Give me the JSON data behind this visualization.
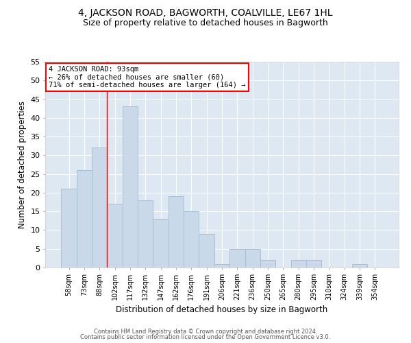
{
  "title1": "4, JACKSON ROAD, BAGWORTH, COALVILLE, LE67 1HL",
  "title2": "Size of property relative to detached houses in Bagworth",
  "xlabel": "Distribution of detached houses by size in Bagworth",
  "ylabel": "Number of detached properties",
  "categories": [
    "58sqm",
    "73sqm",
    "88sqm",
    "102sqm",
    "117sqm",
    "132sqm",
    "147sqm",
    "162sqm",
    "176sqm",
    "191sqm",
    "206sqm",
    "221sqm",
    "236sqm",
    "250sqm",
    "265sqm",
    "280sqm",
    "295sqm",
    "310sqm",
    "324sqm",
    "339sqm",
    "354sqm"
  ],
  "values": [
    21,
    26,
    32,
    17,
    43,
    18,
    13,
    19,
    15,
    9,
    1,
    5,
    5,
    2,
    0,
    2,
    2,
    0,
    0,
    1,
    0
  ],
  "bar_color": "#c9d9ea",
  "bar_edge_color": "#a8bfd4",
  "vline_x": 2.5,
  "vline_color": "red",
  "ylim": [
    0,
    55
  ],
  "yticks": [
    0,
    5,
    10,
    15,
    20,
    25,
    30,
    35,
    40,
    45,
    50,
    55
  ],
  "annotation_title": "4 JACKSON ROAD: 93sqm",
  "annotation_line1": "← 26% of detached houses are smaller (60)",
  "annotation_line2": "71% of semi-detached houses are larger (164) →",
  "annotation_box_color": "white",
  "annotation_box_edgecolor": "red",
  "footer1": "Contains HM Land Registry data © Crown copyright and database right 2024.",
  "footer2": "Contains public sector information licensed under the Open Government Licence v3.0.",
  "bg_color": "#dde8f3",
  "title1_fontsize": 10,
  "title2_fontsize": 9,
  "xlabel_fontsize": 8.5,
  "ylabel_fontsize": 8.5,
  "annotation_fontsize": 7.5,
  "footer_fontsize": 6
}
